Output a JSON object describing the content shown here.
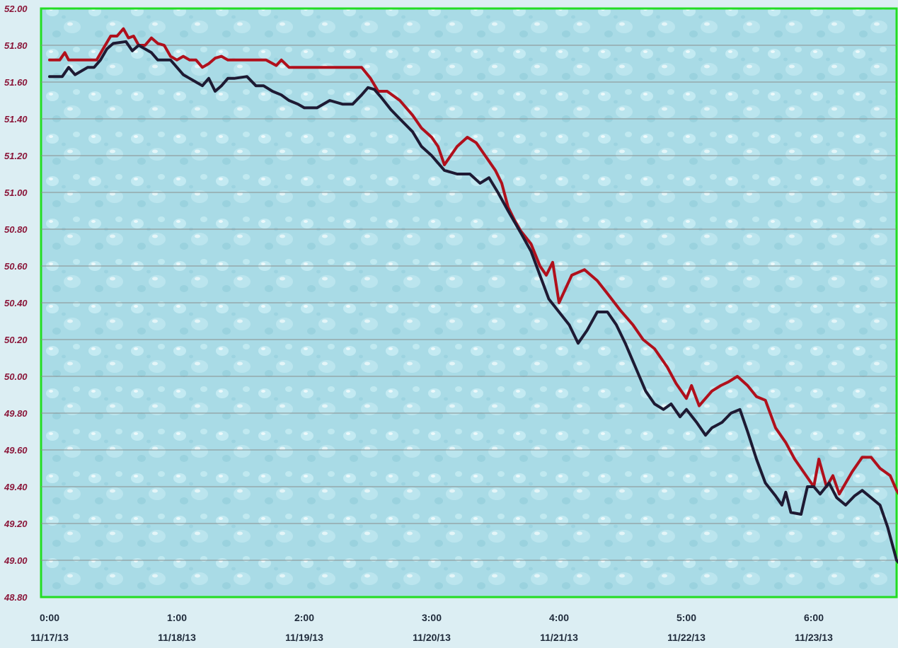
{
  "chart_data": {
    "type": "line",
    "title": "",
    "xlabel": "",
    "ylabel": "",
    "ylim": [
      48.8,
      52.0
    ],
    "grid": true,
    "legend": "none",
    "y_ticks": [
      "52.00",
      "51.80",
      "51.60",
      "51.40",
      "51.20",
      "51.00",
      "50.80",
      "50.60",
      "50.40",
      "50.20",
      "50.00",
      "49.80",
      "49.60",
      "49.40",
      "49.20",
      "49.00",
      "48.80"
    ],
    "x_ticks": [
      {
        "time": "0:00",
        "date": "11/17/13"
      },
      {
        "time": "1:00",
        "date": "11/18/13"
      },
      {
        "time": "2:00",
        "date": "11/19/13"
      },
      {
        "time": "3:00",
        "date": "11/20/13"
      },
      {
        "time": "4:00",
        "date": "11/21/13"
      },
      {
        "time": "5:00",
        "date": "11/22/13"
      },
      {
        "time": "6:00",
        "date": "11/23/13"
      }
    ],
    "x_range": [
      0,
      6.7
    ],
    "colors": {
      "frame": "#22dd22",
      "plot_bg": "#a9dbe6",
      "gridline": "#8a8f8f",
      "series_red": "#b0101c",
      "series_dark": "#1e1a33",
      "ytick_text": "#8a1538",
      "xtick_text": "#1f2a3a"
    },
    "series": [
      {
        "color": "#b0101c",
        "points": [
          [
            0,
            51.72
          ],
          [
            0.08,
            51.72
          ],
          [
            0.12,
            51.76
          ],
          [
            0.15,
            51.72
          ],
          [
            0.25,
            51.72
          ],
          [
            0.37,
            51.72
          ],
          [
            0.42,
            51.78
          ],
          [
            0.48,
            51.85
          ],
          [
            0.53,
            51.85
          ],
          [
            0.58,
            51.89
          ],
          [
            0.62,
            51.84
          ],
          [
            0.66,
            51.85
          ],
          [
            0.7,
            51.8
          ],
          [
            0.75,
            51.8
          ],
          [
            0.8,
            51.84
          ],
          [
            0.85,
            51.81
          ],
          [
            0.9,
            51.8
          ],
          [
            0.95,
            51.74
          ],
          [
            1.0,
            51.72
          ],
          [
            1.05,
            51.74
          ],
          [
            1.1,
            51.72
          ],
          [
            1.15,
            51.72
          ],
          [
            1.2,
            51.68
          ],
          [
            1.25,
            51.7
          ],
          [
            1.3,
            51.73
          ],
          [
            1.35,
            51.74
          ],
          [
            1.4,
            51.72
          ],
          [
            1.5,
            51.72
          ],
          [
            1.6,
            51.72
          ],
          [
            1.7,
            51.72
          ],
          [
            1.78,
            51.69
          ],
          [
            1.82,
            51.72
          ],
          [
            1.88,
            51.68
          ],
          [
            2.0,
            51.68
          ],
          [
            2.1,
            51.68
          ],
          [
            2.2,
            51.68
          ],
          [
            2.3,
            51.68
          ],
          [
            2.45,
            51.68
          ],
          [
            2.52,
            51.62
          ],
          [
            2.58,
            51.55
          ],
          [
            2.65,
            51.55
          ],
          [
            2.75,
            51.5
          ],
          [
            2.85,
            51.42
          ],
          [
            2.92,
            51.35
          ],
          [
            3.0,
            51.3
          ],
          [
            3.05,
            51.25
          ],
          [
            3.1,
            51.15
          ],
          [
            3.2,
            51.25
          ],
          [
            3.28,
            51.3
          ],
          [
            3.35,
            51.27
          ],
          [
            3.42,
            51.2
          ],
          [
            3.5,
            51.12
          ],
          [
            3.55,
            51.05
          ],
          [
            3.6,
            50.92
          ],
          [
            3.65,
            50.85
          ],
          [
            3.7,
            50.79
          ],
          [
            3.78,
            50.72
          ],
          [
            3.85,
            50.6
          ],
          [
            3.9,
            50.55
          ],
          [
            3.95,
            50.62
          ],
          [
            4.0,
            50.4
          ],
          [
            4.1,
            50.55
          ],
          [
            4.2,
            50.58
          ],
          [
            4.3,
            50.52
          ],
          [
            4.38,
            50.45
          ],
          [
            4.48,
            50.36
          ],
          [
            4.58,
            50.28
          ],
          [
            4.66,
            50.2
          ],
          [
            4.75,
            50.15
          ],
          [
            4.85,
            50.05
          ],
          [
            4.92,
            49.96
          ],
          [
            5.0,
            49.88
          ],
          [
            5.04,
            49.95
          ],
          [
            5.1,
            49.84
          ],
          [
            5.2,
            49.92
          ],
          [
            5.27,
            49.95
          ],
          [
            5.33,
            49.97
          ],
          [
            5.4,
            50.0
          ],
          [
            5.48,
            49.95
          ],
          [
            5.55,
            49.89
          ],
          [
            5.62,
            49.87
          ],
          [
            5.7,
            49.72
          ],
          [
            5.78,
            49.64
          ],
          [
            5.85,
            49.55
          ],
          [
            5.95,
            49.45
          ],
          [
            6.0,
            49.4
          ],
          [
            6.04,
            49.55
          ],
          [
            6.1,
            49.4
          ],
          [
            6.15,
            49.46
          ],
          [
            6.2,
            49.36
          ],
          [
            6.3,
            49.48
          ],
          [
            6.38,
            49.56
          ],
          [
            6.45,
            49.56
          ],
          [
            6.52,
            49.5
          ],
          [
            6.6,
            49.46
          ],
          [
            6.65,
            49.38
          ],
          [
            6.7,
            49.33
          ],
          [
            6.73,
            49.34
          ]
        ]
      },
      {
        "color": "#1e1a33",
        "points": [
          [
            0,
            51.63
          ],
          [
            0.1,
            51.63
          ],
          [
            0.15,
            51.68
          ],
          [
            0.2,
            51.64
          ],
          [
            0.3,
            51.68
          ],
          [
            0.35,
            51.68
          ],
          [
            0.4,
            51.72
          ],
          [
            0.45,
            51.78
          ],
          [
            0.5,
            51.81
          ],
          [
            0.6,
            51.82
          ],
          [
            0.65,
            51.77
          ],
          [
            0.7,
            51.8
          ],
          [
            0.8,
            51.76
          ],
          [
            0.85,
            51.72
          ],
          [
            0.95,
            51.72
          ],
          [
            1.0,
            51.68
          ],
          [
            1.05,
            51.64
          ],
          [
            1.1,
            51.62
          ],
          [
            1.15,
            51.6
          ],
          [
            1.2,
            51.58
          ],
          [
            1.25,
            51.62
          ],
          [
            1.3,
            51.55
          ],
          [
            1.35,
            51.58
          ],
          [
            1.4,
            51.62
          ],
          [
            1.45,
            51.62
          ],
          [
            1.55,
            51.63
          ],
          [
            1.62,
            51.58
          ],
          [
            1.68,
            51.58
          ],
          [
            1.75,
            51.55
          ],
          [
            1.82,
            51.53
          ],
          [
            1.88,
            51.5
          ],
          [
            1.95,
            51.48
          ],
          [
            2.0,
            51.46
          ],
          [
            2.1,
            51.46
          ],
          [
            2.2,
            51.5
          ],
          [
            2.3,
            51.48
          ],
          [
            2.38,
            51.48
          ],
          [
            2.45,
            51.53
          ],
          [
            2.5,
            51.57
          ],
          [
            2.55,
            51.56
          ],
          [
            2.6,
            51.52
          ],
          [
            2.68,
            51.45
          ],
          [
            2.75,
            51.4
          ],
          [
            2.85,
            51.33
          ],
          [
            2.92,
            51.25
          ],
          [
            3.0,
            51.2
          ],
          [
            3.05,
            51.16
          ],
          [
            3.1,
            51.12
          ],
          [
            3.2,
            51.1
          ],
          [
            3.3,
            51.1
          ],
          [
            3.38,
            51.05
          ],
          [
            3.45,
            51.08
          ],
          [
            3.52,
            51.0
          ],
          [
            3.6,
            50.9
          ],
          [
            3.7,
            50.78
          ],
          [
            3.78,
            50.68
          ],
          [
            3.85,
            50.55
          ],
          [
            3.92,
            50.42
          ],
          [
            4.0,
            50.35
          ],
          [
            4.08,
            50.28
          ],
          [
            4.15,
            50.18
          ],
          [
            4.22,
            50.25
          ],
          [
            4.3,
            50.35
          ],
          [
            4.38,
            50.35
          ],
          [
            4.45,
            50.28
          ],
          [
            4.52,
            50.18
          ],
          [
            4.6,
            50.05
          ],
          [
            4.68,
            49.92
          ],
          [
            4.75,
            49.85
          ],
          [
            4.82,
            49.82
          ],
          [
            4.88,
            49.85
          ],
          [
            4.95,
            49.78
          ],
          [
            5.0,
            49.82
          ],
          [
            5.08,
            49.75
          ],
          [
            5.15,
            49.68
          ],
          [
            5.2,
            49.72
          ],
          [
            5.28,
            49.75
          ],
          [
            5.35,
            49.8
          ],
          [
            5.42,
            49.82
          ],
          [
            5.48,
            49.7
          ],
          [
            5.55,
            49.55
          ],
          [
            5.62,
            49.42
          ],
          [
            5.7,
            49.35
          ],
          [
            5.75,
            49.3
          ],
          [
            5.78,
            49.37
          ],
          [
            5.82,
            49.26
          ],
          [
            5.9,
            49.25
          ],
          [
            5.95,
            49.4
          ],
          [
            6.0,
            49.4
          ],
          [
            6.05,
            49.36
          ],
          [
            6.12,
            49.42
          ],
          [
            6.18,
            49.34
          ],
          [
            6.25,
            49.3
          ],
          [
            6.32,
            49.35
          ],
          [
            6.38,
            49.38
          ],
          [
            6.45,
            49.34
          ],
          [
            6.52,
            49.3
          ],
          [
            6.58,
            49.18
          ],
          [
            6.65,
            49.0
          ],
          [
            6.73,
            48.94
          ]
        ]
      }
    ]
  }
}
